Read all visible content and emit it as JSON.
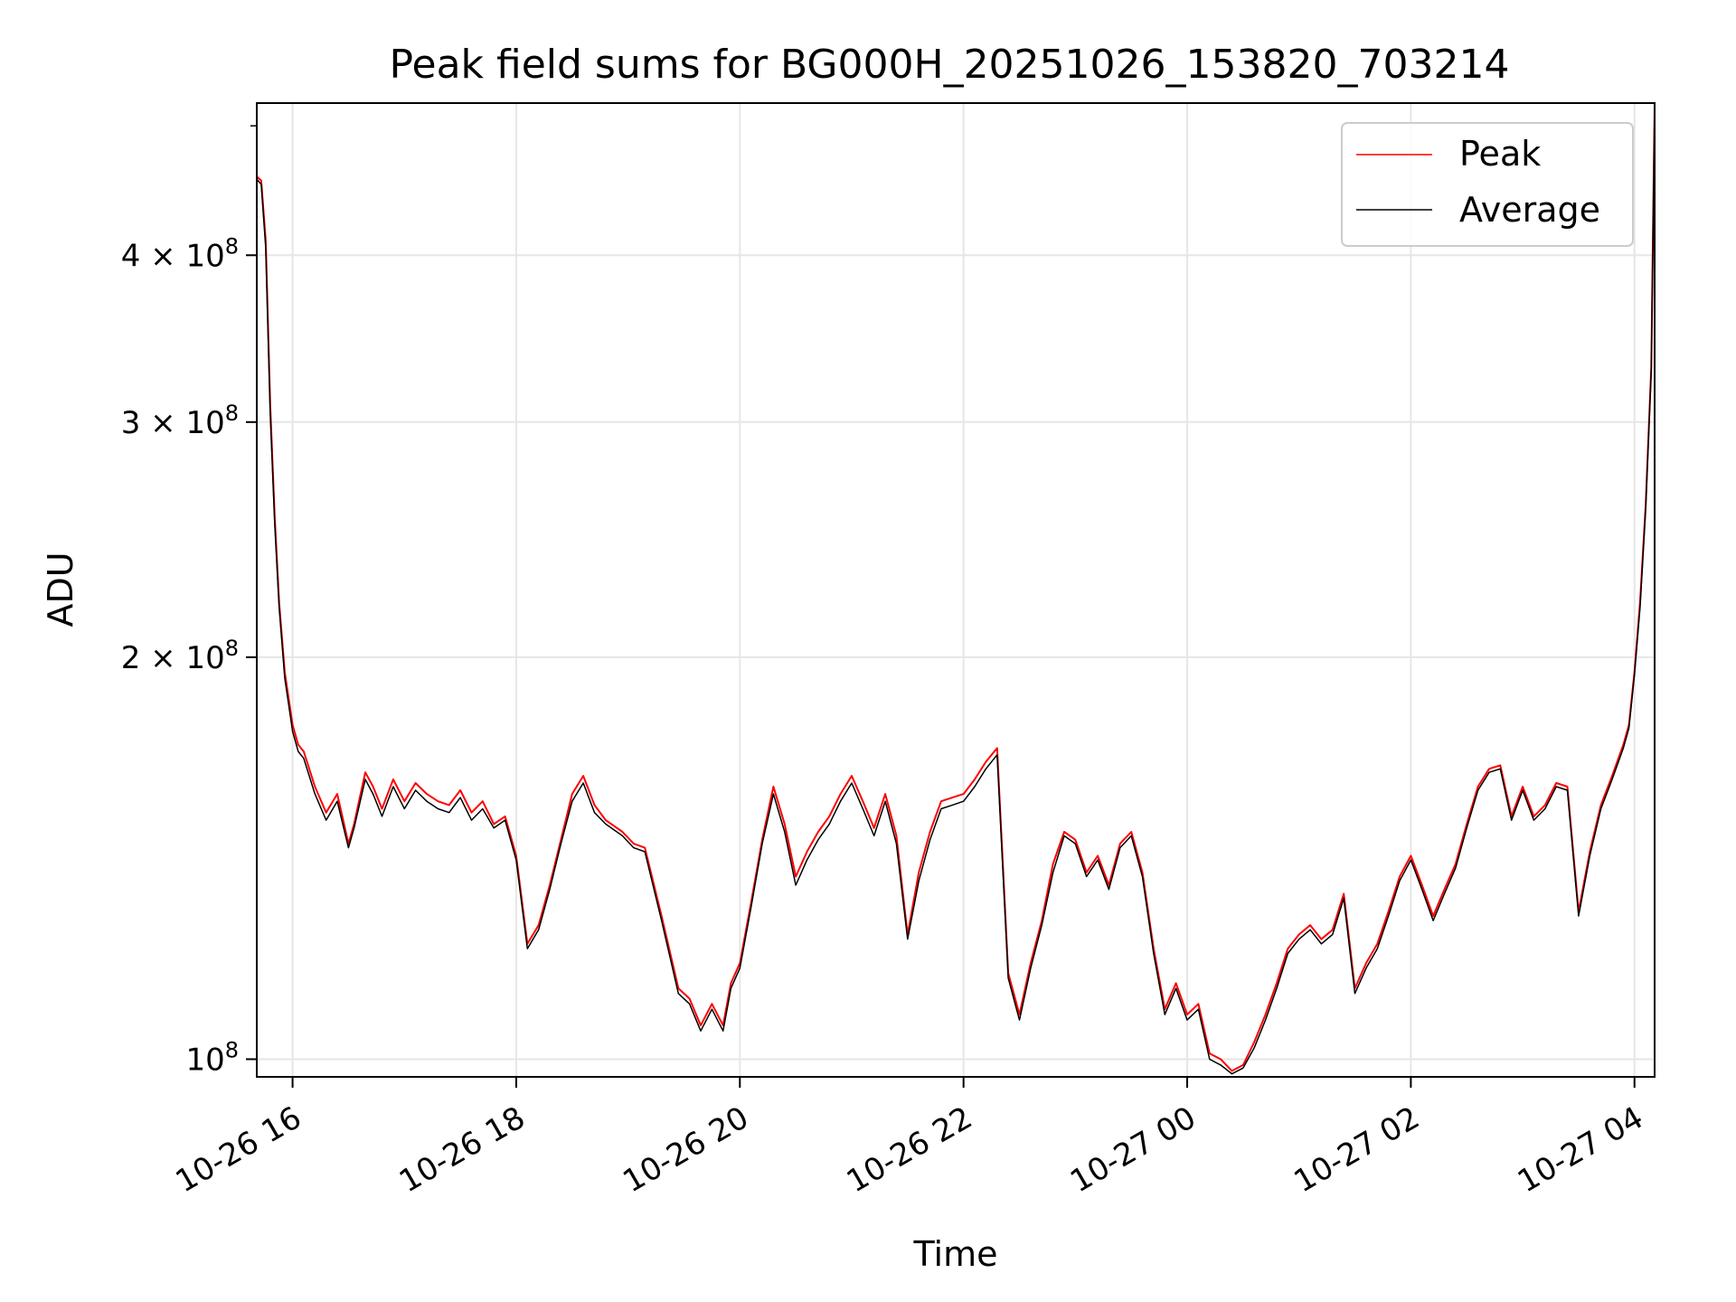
{
  "chart_data": {
    "type": "line",
    "title": "Peak field sums for BG000H_20251026_153820_703214",
    "xlabel": "Time",
    "ylabel": "ADU",
    "yscale": "log",
    "xlim": [
      15.68,
      28.18
    ],
    "ylim": [
      97000000,
      520000000
    ],
    "grid": true,
    "legend_position": "top-right",
    "x_unit": "hours since 2025-10-26 00:00",
    "x_ticks": [
      {
        "value": 16,
        "label": "10-26 16"
      },
      {
        "value": 18,
        "label": "10-26 18"
      },
      {
        "value": 20,
        "label": "10-26 20"
      },
      {
        "value": 22,
        "label": "10-26 22"
      },
      {
        "value": 24,
        "label": "10-27 00"
      },
      {
        "value": 26,
        "label": "10-27 02"
      },
      {
        "value": 28,
        "label": "10-27 04"
      }
    ],
    "y_ticks": [
      {
        "value": 100000000,
        "base": "10",
        "exp": "8",
        "mult": ""
      },
      {
        "value": 200000000,
        "base": "2 × 10",
        "exp": "8",
        "mult": ""
      },
      {
        "value": 300000000,
        "base": "3 × 10",
        "exp": "8",
        "mult": ""
      },
      {
        "value": 400000000,
        "base": "4 × 10",
        "exp": "8",
        "mult": ""
      }
    ],
    "series": [
      {
        "name": "Peak",
        "color": "#ff0000",
        "x": [
          15.68,
          15.72,
          15.76,
          15.8,
          15.84,
          15.88,
          15.93,
          16.0,
          16.05,
          16.1,
          16.2,
          16.3,
          16.4,
          16.5,
          16.55,
          16.65,
          16.72,
          16.8,
          16.9,
          17.0,
          17.1,
          17.2,
          17.3,
          17.4,
          17.5,
          17.6,
          17.7,
          17.8,
          17.9,
          18.0,
          18.1,
          18.2,
          18.3,
          18.4,
          18.5,
          18.6,
          18.7,
          18.8,
          18.95,
          19.05,
          19.15,
          19.3,
          19.45,
          19.55,
          19.65,
          19.75,
          19.85,
          19.92,
          20.0,
          20.1,
          20.2,
          20.3,
          20.4,
          20.5,
          20.6,
          20.7,
          20.8,
          20.9,
          21.0,
          21.1,
          21.2,
          21.3,
          21.4,
          21.5,
          21.6,
          21.7,
          21.8,
          21.9,
          22.0,
          22.1,
          22.2,
          22.3,
          22.4,
          22.5,
          22.6,
          22.7,
          22.8,
          22.9,
          23.0,
          23.1,
          23.2,
          23.3,
          23.4,
          23.5,
          23.6,
          23.7,
          23.8,
          23.9,
          24.0,
          24.1,
          24.2,
          24.3,
          24.4,
          24.5,
          24.6,
          24.7,
          24.8,
          24.9,
          25.0,
          25.1,
          25.2,
          25.3,
          25.4,
          25.5,
          25.6,
          25.7,
          25.8,
          25.9,
          26.0,
          26.1,
          26.2,
          26.3,
          26.4,
          26.5,
          26.6,
          26.7,
          26.8,
          26.9,
          27.0,
          27.1,
          27.2,
          27.3,
          27.4,
          27.5,
          27.6,
          27.7,
          27.8,
          27.9,
          27.95,
          28.0,
          28.05,
          28.1,
          28.15,
          28.18
        ],
        "y": [
          458000000,
          455000000,
          410000000,
          310000000,
          255000000,
          220000000,
          195000000,
          178000000,
          172000000,
          170000000,
          160000000,
          153000000,
          158000000,
          145000000,
          150000000,
          164000000,
          160000000,
          154000000,
          162000000,
          156000000,
          161000000,
          158000000,
          156000000,
          155000000,
          159000000,
          153000000,
          156000000,
          150000000,
          152000000,
          142000000,
          122000000,
          126000000,
          135000000,
          146000000,
          158000000,
          163000000,
          155000000,
          151000000,
          148000000,
          145000000,
          144000000,
          128000000,
          113000000,
          111000000,
          106000000,
          110000000,
          106000000,
          114000000,
          118000000,
          131000000,
          146000000,
          160000000,
          150000000,
          137000000,
          143000000,
          148000000,
          152000000,
          158000000,
          163000000,
          156000000,
          149000000,
          158000000,
          147000000,
          124000000,
          138000000,
          148000000,
          156000000,
          157000000,
          158000000,
          162000000,
          167000000,
          171000000,
          116000000,
          108000000,
          118000000,
          127000000,
          140000000,
          148000000,
          146000000,
          138000000,
          142000000,
          135000000,
          145000000,
          148000000,
          138000000,
          121000000,
          109000000,
          114000000,
          108000000,
          110000000,
          101000000,
          100000000,
          98000000,
          99000000,
          103000000,
          108000000,
          114000000,
          121000000,
          124000000,
          126000000,
          123000000,
          125000000,
          133000000,
          113000000,
          118000000,
          122000000,
          129000000,
          137000000,
          142000000,
          135000000,
          128000000,
          134000000,
          140000000,
          150000000,
          160000000,
          165000000,
          166000000,
          152000000,
          160000000,
          152000000,
          155000000,
          161000000,
          160000000,
          129000000,
          143000000,
          155000000,
          163000000,
          172000000,
          178000000,
          195000000,
          220000000,
          260000000,
          330000000,
          520000000
        ]
      },
      {
        "name": "Average",
        "color": "#000000",
        "x": [
          15.68,
          15.72,
          15.76,
          15.8,
          15.84,
          15.88,
          15.93,
          16.0,
          16.05,
          16.1,
          16.2,
          16.3,
          16.4,
          16.5,
          16.55,
          16.65,
          16.72,
          16.8,
          16.9,
          17.0,
          17.1,
          17.2,
          17.3,
          17.4,
          17.5,
          17.6,
          17.7,
          17.8,
          17.9,
          18.0,
          18.1,
          18.2,
          18.3,
          18.4,
          18.5,
          18.6,
          18.7,
          18.8,
          18.95,
          19.05,
          19.15,
          19.3,
          19.45,
          19.55,
          19.65,
          19.75,
          19.85,
          19.92,
          20.0,
          20.1,
          20.2,
          20.3,
          20.4,
          20.5,
          20.6,
          20.7,
          20.8,
          20.9,
          21.0,
          21.1,
          21.2,
          21.3,
          21.4,
          21.5,
          21.6,
          21.7,
          21.8,
          21.9,
          22.0,
          22.1,
          22.2,
          22.3,
          22.4,
          22.5,
          22.6,
          22.7,
          22.8,
          22.9,
          23.0,
          23.1,
          23.2,
          23.3,
          23.4,
          23.5,
          23.6,
          23.7,
          23.8,
          23.9,
          24.0,
          24.1,
          24.2,
          24.3,
          24.4,
          24.5,
          24.6,
          24.7,
          24.8,
          24.9,
          25.0,
          25.1,
          25.2,
          25.3,
          25.4,
          25.5,
          25.6,
          25.7,
          25.8,
          25.9,
          26.0,
          26.1,
          26.2,
          26.3,
          26.4,
          26.5,
          26.6,
          26.7,
          26.8,
          26.9,
          27.0,
          27.1,
          27.2,
          27.3,
          27.4,
          27.5,
          27.6,
          27.7,
          27.8,
          27.9,
          27.95,
          28.0,
          28.05,
          28.1,
          28.15,
          28.18
        ],
        "y": [
          456000000,
          452000000,
          405000000,
          305000000,
          252000000,
          218000000,
          193000000,
          176000000,
          170000000,
          168000000,
          158000000,
          151000000,
          156000000,
          144000000,
          149000000,
          162000000,
          158000000,
          152000000,
          160000000,
          154000000,
          159000000,
          156000000,
          154000000,
          153000000,
          157000000,
          151000000,
          154000000,
          149000000,
          151000000,
          141000000,
          121000000,
          125000000,
          134000000,
          145000000,
          156000000,
          161000000,
          153000000,
          150000000,
          147000000,
          144000000,
          143000000,
          127000000,
          112000000,
          110000000,
          105000000,
          109000000,
          105000000,
          113000000,
          117000000,
          130000000,
          145000000,
          158000000,
          148000000,
          135000000,
          141000000,
          146000000,
          150000000,
          156000000,
          161000000,
          154000000,
          147000000,
          156000000,
          145000000,
          123000000,
          136000000,
          146000000,
          154000000,
          155000000,
          156000000,
          160000000,
          165000000,
          169000000,
          115000000,
          107000000,
          117000000,
          126000000,
          138000000,
          147000000,
          145000000,
          137000000,
          141000000,
          134000000,
          144000000,
          147000000,
          137000000,
          120000000,
          108000000,
          113000000,
          107000000,
          109000000,
          100000000,
          99000000,
          97500000,
          98500000,
          102000000,
          107000000,
          113000000,
          120000000,
          123000000,
          125000000,
          122000000,
          124000000,
          132000000,
          112000000,
          117000000,
          121000000,
          128000000,
          136000000,
          141000000,
          134000000,
          127000000,
          133000000,
          139000000,
          149000000,
          159000000,
          164000000,
          165000000,
          151000000,
          159000000,
          151000000,
          154000000,
          160000000,
          159000000,
          128000000,
          142000000,
          154000000,
          162000000,
          171000000,
          177000000,
          194000000,
          218000000,
          258000000,
          328000000,
          520000000
        ]
      }
    ]
  }
}
